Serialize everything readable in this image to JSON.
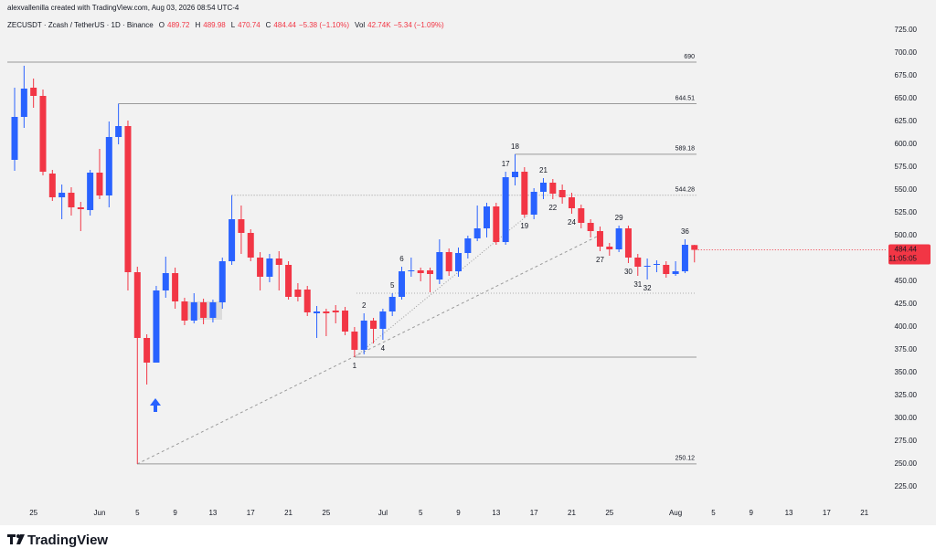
{
  "chart_data": {
    "type": "candlestick",
    "header": "alexvallenilla created with TradingView.com, Aug 03, 2026 08:54 UTC-4",
    "symbol": "ZECUSDT · Zcash / TetherUS · 1D · Binance",
    "legend_keys": [
      "O",
      "H",
      "L",
      "C"
    ],
    "change": "−5.38 (−1.10%)",
    "volume_key": "Vol",
    "volume": "42.74K",
    "volume_change": "−5.34 (−1.09%)",
    "countdown": "11:05:05",
    "brand": "TradingView",
    "up_color": "#2962ff",
    "down_color": "#f23645",
    "categories": [
      null,
      null,
      "25",
      null,
      null,
      null,
      null,
      null,
      null,
      "Jun",
      null,
      null,
      null,
      "5",
      null,
      null,
      null,
      "9",
      null,
      null,
      null,
      "13",
      null,
      null,
      null,
      "17",
      null,
      null,
      null,
      "21",
      null,
      null,
      null,
      "25",
      null,
      null,
      null,
      null,
      null,
      "Jul",
      null,
      null,
      null,
      "5",
      null,
      null,
      null,
      "9",
      null,
      null,
      null,
      "13",
      null,
      null,
      null,
      "17",
      null,
      null,
      null,
      "21",
      null,
      null,
      null,
      "25",
      null,
      null,
      null,
      null,
      null,
      null,
      "Aug",
      null,
      null,
      null,
      "5",
      null,
      null,
      null,
      "9",
      null,
      null,
      null,
      "13",
      null,
      null,
      null,
      "17",
      null,
      null,
      null,
      "21"
    ],
    "open": [
      583,
      630,
      662,
      653,
      568,
      542,
      547,
      531,
      528,
      569,
      544,
      608,
      620,
      460,
      388,
      361,
      440,
      459,
      428,
      407,
      427,
      410,
      427,
      472,
      518,
      503,
      476,
      455,
      475,
      468,
      441,
      441,
      415,
      417,
      418,
      418,
      395,
      375,
      407,
      398,
      417,
      433,
      461,
      462,
      462,
      452,
      482,
      461,
      481,
      497,
      508,
      532,
      493,
      564,
      570,
      523,
      548,
      558,
      550,
      542,
      530,
      514,
      505,
      488,
      485,
      508,
      476,
      466,
      468,
      468,
      458,
      461,
      489.72,
      null,
      null,
      null,
      null,
      null,
      null,
      null,
      null,
      null,
      null,
      null,
      null,
      null,
      null,
      null,
      null,
      null,
      null
    ],
    "high": [
      662,
      686,
      672,
      660,
      572,
      556,
      553,
      537,
      572,
      595,
      625,
      644.51,
      626,
      466,
      392,
      445,
      477,
      465,
      432,
      437,
      431,
      430,
      476,
      544.28,
      533,
      507,
      482,
      480,
      483,
      472,
      448,
      445,
      423,
      420,
      424,
      422,
      400,
      415,
      410,
      420,
      437,
      466,
      476,
      465,
      465,
      496,
      486,
      487,
      500,
      533,
      536,
      536,
      570,
      589.18,
      575,
      552,
      563,
      562,
      556,
      547,
      534,
      518,
      510,
      492,
      511,
      511,
      480,
      475,
      473,
      472,
      472,
      496,
      489.98,
      null,
      null,
      null,
      null,
      null,
      null,
      null,
      null,
      null,
      null,
      null,
      null,
      null,
      null,
      null,
      null,
      null,
      null
    ],
    "low": [
      571,
      618,
      640,
      566,
      538,
      518,
      522,
      505,
      522,
      540,
      531,
      600,
      440,
      250.12,
      337,
      361,
      432,
      420,
      402,
      404,
      403,
      405,
      420,
      468,
      480,
      472,
      440,
      449,
      440,
      430,
      428,
      412,
      388,
      390,
      404,
      391,
      367,
      370,
      382,
      386,
      412,
      430,
      455,
      450,
      438,
      447,
      456,
      455,
      475,
      494,
      498,
      490,
      490,
      555,
      520,
      518,
      540,
      540,
      535,
      524,
      508,
      498,
      483,
      478,
      482,
      470,
      456,
      452,
      460,
      454,
      456,
      459,
      470.74,
      null,
      null,
      null,
      null,
      null,
      null,
      null,
      null,
      null,
      null,
      null,
      null,
      null,
      null,
      null,
      null,
      null,
      null
    ],
    "close": [
      630,
      661,
      653,
      570,
      542,
      547,
      531,
      529,
      569,
      544,
      608,
      620,
      460,
      388,
      361,
      440,
      459,
      428,
      407,
      427,
      410,
      427,
      472,
      518,
      503,
      476,
      455,
      475,
      468,
      433,
      433,
      416,
      417,
      415,
      416,
      395,
      375,
      407,
      398,
      417,
      433,
      461,
      462,
      459,
      458,
      482,
      461,
      481,
      497,
      508,
      532,
      493,
      564,
      570,
      523,
      548,
      558,
      546,
      542,
      530,
      514,
      505,
      488,
      485,
      508,
      476,
      466,
      467,
      469,
      458,
      461,
      490,
      484.44,
      null,
      null,
      null,
      null,
      null,
      null,
      null,
      null,
      null,
      null,
      null,
      null,
      null,
      null,
      null,
      null,
      null,
      null
    ],
    "count_labels": [
      null,
      null,
      null,
      null,
      null,
      null,
      null,
      null,
      null,
      null,
      null,
      null,
      null,
      null,
      null,
      null,
      null,
      null,
      null,
      null,
      null,
      null,
      null,
      null,
      null,
      null,
      null,
      null,
      null,
      null,
      null,
      null,
      null,
      null,
      null,
      null,
      {
        "text": "1",
        "side": "below"
      },
      {
        "text": "2",
        "side": "above"
      },
      null,
      {
        "text": "4",
        "side": "below"
      },
      {
        "text": "5",
        "side": "above"
      },
      {
        "text": "6",
        "side": "above"
      },
      null,
      null,
      null,
      null,
      null,
      null,
      null,
      null,
      null,
      null,
      {
        "text": "17",
        "side": "above"
      },
      {
        "text": "18",
        "side": "above"
      },
      {
        "text": "19",
        "side": "below"
      },
      null,
      {
        "text": "21",
        "side": "above"
      },
      {
        "text": "22",
        "side": "below"
      },
      null,
      {
        "text": "24",
        "side": "below"
      },
      null,
      null,
      {
        "text": "27",
        "side": "below"
      },
      null,
      {
        "text": "29",
        "side": "above"
      },
      {
        "text": "30",
        "side": "below"
      },
      {
        "text": "31",
        "side": "below"
      },
      {
        "text": "32",
        "side": "below"
      },
      null,
      null,
      null,
      {
        "text": "36",
        "side": "above"
      },
      null,
      null,
      null,
      null,
      null,
      null,
      null,
      null,
      null,
      null,
      null,
      null,
      null,
      null,
      null,
      null,
      null,
      null,
      null
    ],
    "levels": [
      690,
      644.51,
      589.18,
      250.12
    ],
    "dotted_levels": [
      544.28
    ],
    "ylim": [
      208,
      738
    ],
    "yticks": [
      {
        "value": 225,
        "label": "225.00"
      },
      {
        "value": 250,
        "label": "250.00"
      },
      {
        "value": 275,
        "label": "275.00"
      },
      {
        "value": 300,
        "label": "300.00"
      },
      {
        "value": 325,
        "label": "325.00"
      },
      {
        "value": 350,
        "label": "350.00"
      },
      {
        "value": 375,
        "label": "375.00"
      },
      {
        "value": 400,
        "label": "400.00"
      },
      {
        "value": 425,
        "label": "425.00"
      },
      {
        "value": 450,
        "label": "450.00"
      },
      {
        "value": 475,
        "label": "475.00"
      },
      {
        "value": 500,
        "label": "500.00"
      },
      {
        "value": 525,
        "label": "525.00"
      },
      {
        "value": 550,
        "label": "550.00"
      },
      {
        "value": 575,
        "label": "575.00"
      },
      {
        "value": 600,
        "label": "600.00"
      },
      {
        "value": 625,
        "label": "625.00"
      },
      {
        "value": 650,
        "label": "650.00"
      },
      {
        "value": 675,
        "label": "675.00"
      },
      {
        "value": 700,
        "label": "700.00"
      },
      {
        "value": 725,
        "label": "725.00"
      }
    ],
    "grid": false
  }
}
